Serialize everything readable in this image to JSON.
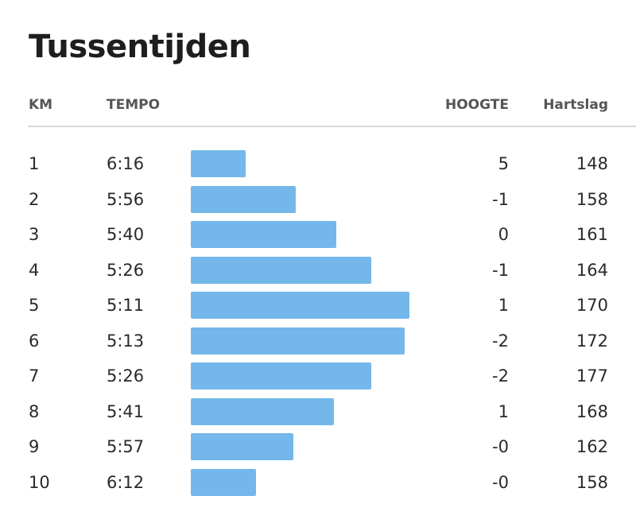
{
  "header": {
    "title": "Tussentijden"
  },
  "table": {
    "columns": [
      "KM",
      "TEMPO",
      "HOOGTE",
      "Hartslag"
    ],
    "rows": [
      [
        1,
        "6:16",
        "5",
        148
      ],
      [
        2,
        "5:56",
        "-1",
        158
      ],
      [
        3,
        "5:40",
        "0",
        161
      ],
      [
        4,
        "5:26",
        "-1",
        164
      ],
      [
        5,
        "5:11",
        "1",
        170
      ],
      [
        6,
        "5:13",
        "-2",
        172
      ],
      [
        7,
        "5:26",
        "-2",
        177
      ],
      [
        8,
        "5:41",
        "1",
        168
      ],
      [
        9,
        "5:57",
        "-0",
        162
      ],
      [
        10,
        "6:12",
        "-0",
        158
      ]
    ],
    "bar_color": "#74b7eb"
  }
}
